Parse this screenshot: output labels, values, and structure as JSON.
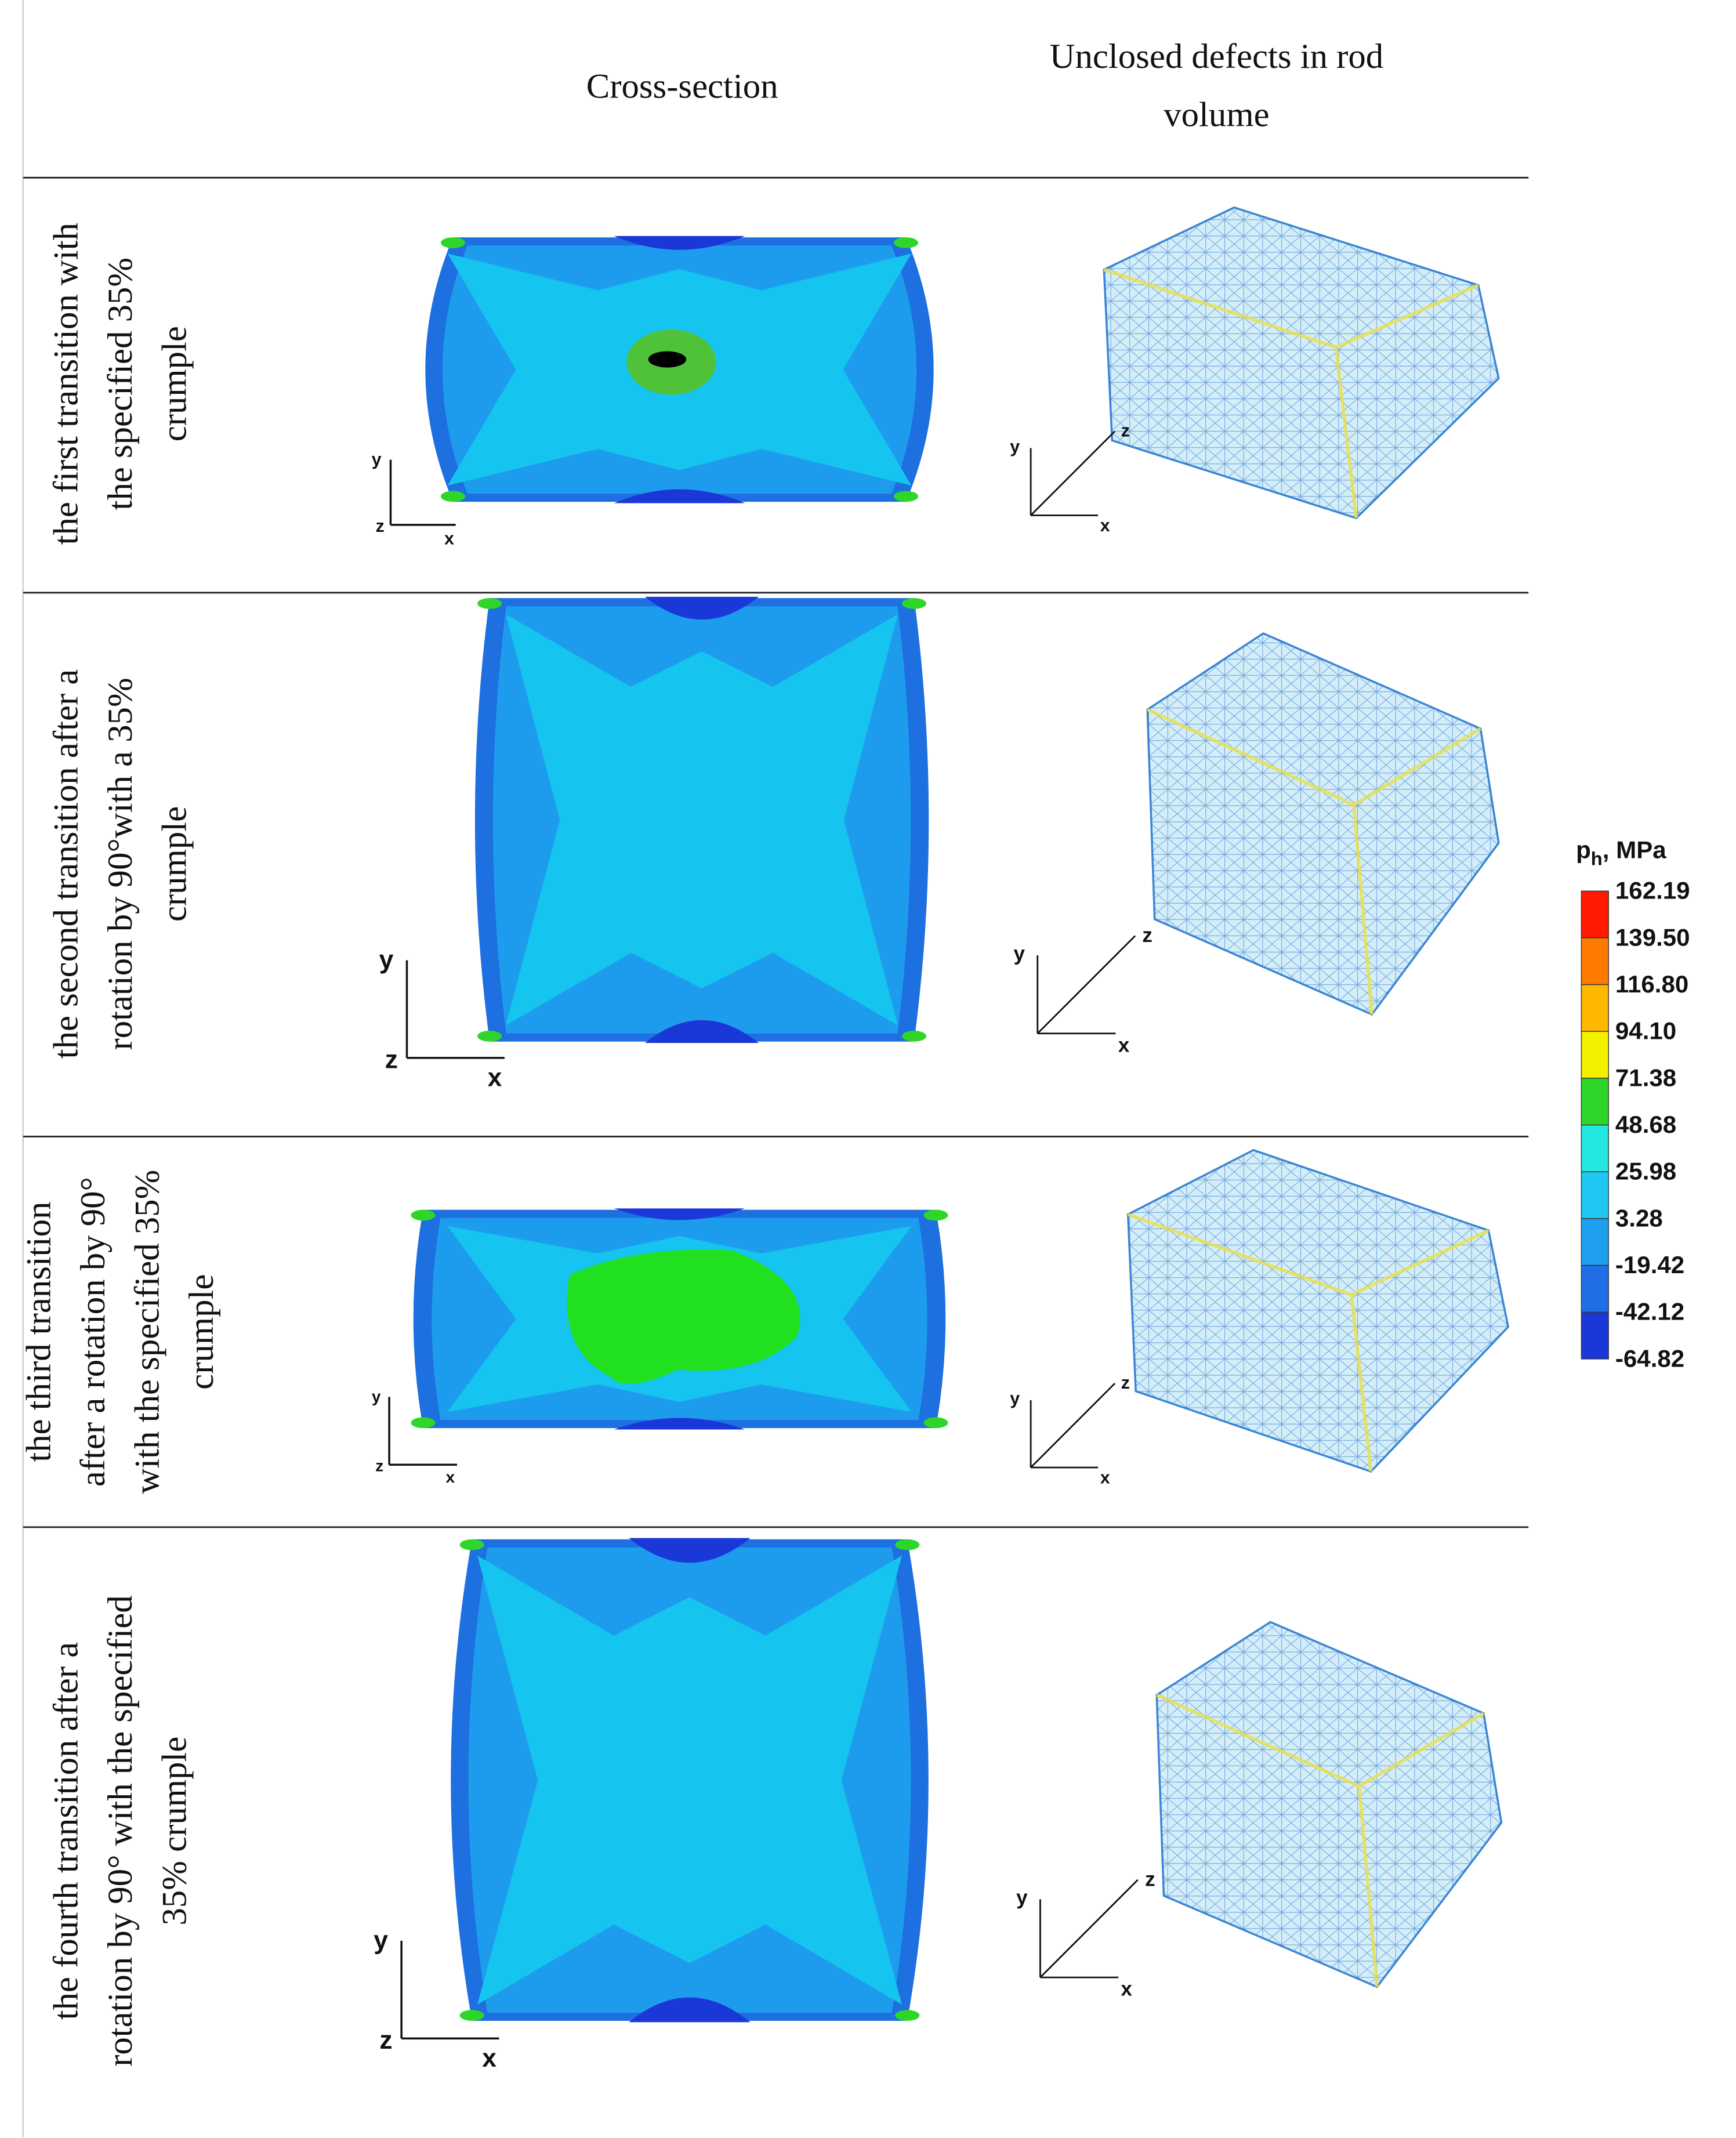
{
  "header": {
    "cross_section": "Cross-section",
    "defects": [
      "Unclosed defects in rod",
      "volume"
    ]
  },
  "rows": [
    {
      "label": [
        "the first transition with",
        "the specified 35%",
        "crumple"
      ]
    },
    {
      "label": [
        "the second transition after a",
        "rotation by 90°with a 35%",
        "crumple"
      ]
    },
    {
      "label": [
        "the third transition",
        "after a rotation by 90°",
        "with the specified 35%",
        "crumple"
      ]
    },
    {
      "label": [
        "the fourth transition after a",
        "rotation by 90° with the specified",
        "35% crumple"
      ]
    }
  ],
  "axis_labels": {
    "x": "x",
    "y": "y",
    "z": "z"
  },
  "legend": {
    "symbol": "p",
    "subscript": "h",
    "unit": ", MPa",
    "values": [
      "162.19",
      "139.50",
      "116.80",
      "94.10",
      "71.38",
      "48.68",
      "25.98",
      "3.28",
      "-19.42",
      "-42.12",
      "-64.82"
    ],
    "colors": [
      "#ff1a00",
      "#ff7a00",
      "#ffb800",
      "#f4f000",
      "#2ed62a",
      "#22e8e0",
      "#1ec8f2",
      "#1ea0ee",
      "#1f6ee6",
      "#1a38d8"
    ]
  }
}
